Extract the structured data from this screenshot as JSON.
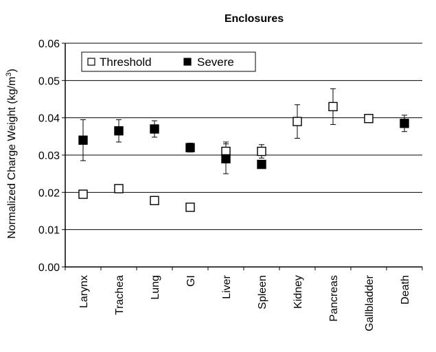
{
  "chart_data": {
    "type": "scatter",
    "title": "Enclosures",
    "ylabel_main": "Normalized Charge Weight (kg/m",
    "ylabel_sup": "3",
    "ylabel_end": ")",
    "xlabel": "",
    "ylim": [
      0,
      0.06
    ],
    "yticks": [
      "0.00",
      "0.01",
      "0.02",
      "0.03",
      "0.04",
      "0.05",
      "0.06"
    ],
    "grid": "horizontal",
    "legend_position": "top-left",
    "categories": [
      "Larynx",
      "Trachea",
      "Lung",
      "GI",
      "Liver",
      "Spleen",
      "Kidney",
      "Pancreas",
      "Gallbladder",
      "Death"
    ],
    "series": [
      {
        "name": "Threshold",
        "marker": "open-square",
        "color": "#000000",
        "values": [
          0.0195,
          0.021,
          0.0178,
          0.016,
          0.031,
          0.031,
          0.039,
          0.043,
          0.0398,
          null
        ],
        "error": [
          0.001,
          0.001,
          0.0005,
          0.0008,
          0.0025,
          0.0018,
          0.0045,
          0.0048,
          0.0005,
          null
        ]
      },
      {
        "name": "Severe",
        "marker": "filled-square",
        "color": "#000000",
        "values": [
          0.034,
          0.0365,
          0.037,
          0.032,
          0.029,
          0.0275,
          null,
          null,
          null,
          0.0385
        ],
        "error": [
          0.0055,
          0.003,
          0.0022,
          0.0012,
          0.004,
          0.0005,
          null,
          null,
          null,
          0.0022
        ]
      }
    ]
  }
}
